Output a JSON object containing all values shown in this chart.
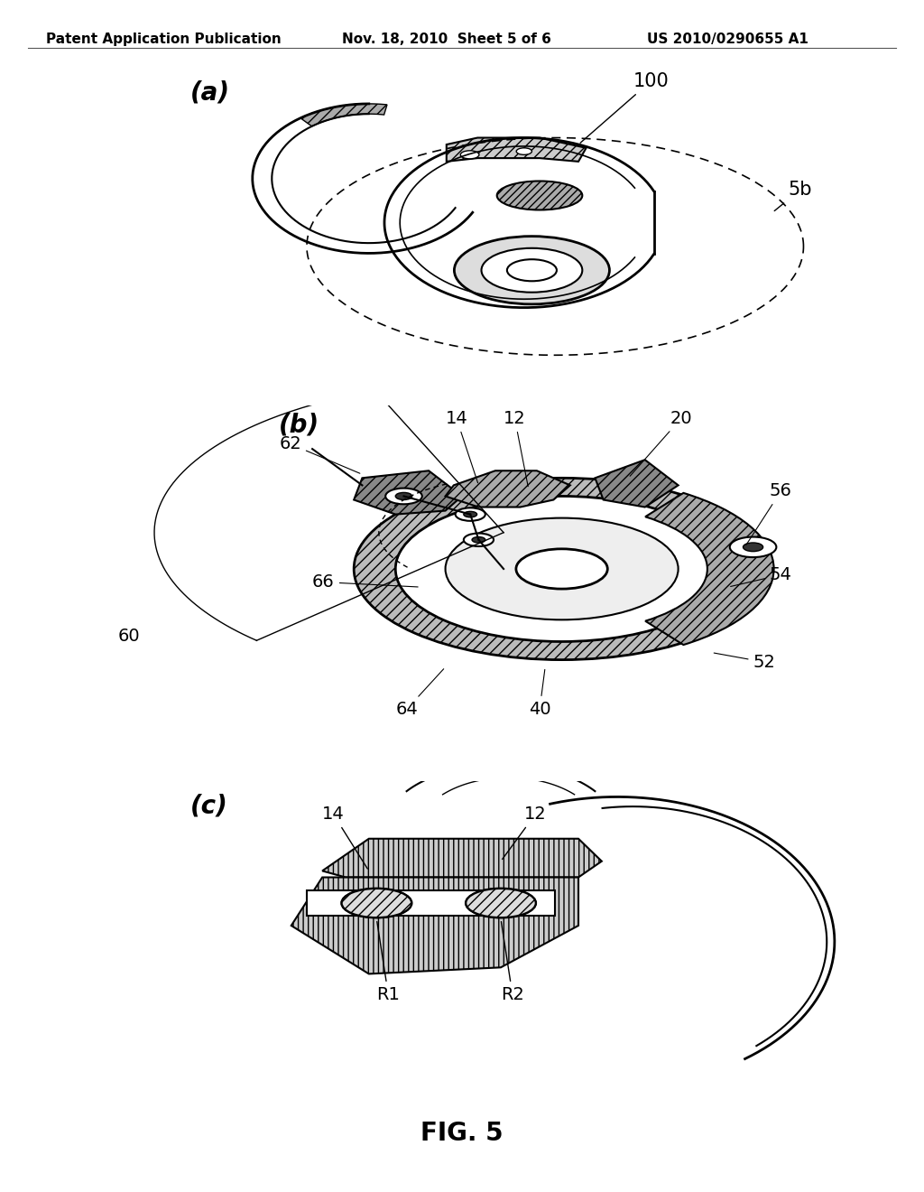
{
  "background_color": "#ffffff",
  "header_left": "Patent Application Publication",
  "header_mid": "Nov. 18, 2010  Sheet 5 of 6",
  "header_right": "US 2010/0290655 A1",
  "fig_label": "FIG. 5",
  "panel_a_label": "(a)",
  "panel_b_label": "(b)",
  "panel_c_label": "(c)",
  "line_color": "#000000",
  "text_color": "#000000",
  "header_fontsize": 11,
  "label_fontsize": 20,
  "annot_fontsize": 14,
  "fig_label_fontsize": 20
}
